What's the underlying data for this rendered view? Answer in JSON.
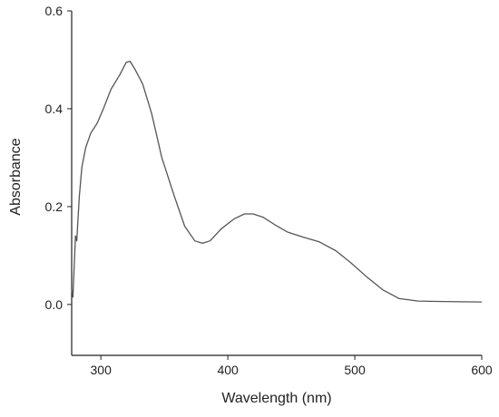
{
  "chart_data": {
    "type": "line",
    "xlabel": "Wavelength (nm)",
    "ylabel": "Absorbance",
    "x": [
      277,
      278,
      279,
      280,
      281,
      283,
      285,
      288,
      292,
      297,
      302,
      308,
      315,
      320,
      323,
      327,
      333,
      340,
      348,
      358,
      366,
      374,
      380,
      386,
      395,
      405,
      413,
      420,
      428,
      437,
      447,
      460,
      472,
      485,
      497,
      510,
      522,
      535,
      550,
      570,
      600
    ],
    "values": [
      0.03,
      0.015,
      0.08,
      0.14,
      0.13,
      0.22,
      0.28,
      0.32,
      0.35,
      0.37,
      0.4,
      0.44,
      0.47,
      0.495,
      0.497,
      0.48,
      0.45,
      0.39,
      0.3,
      0.22,
      0.16,
      0.13,
      0.125,
      0.13,
      0.155,
      0.175,
      0.185,
      0.185,
      0.178,
      0.163,
      0.148,
      0.137,
      0.128,
      0.11,
      0.085,
      0.055,
      0.03,
      0.012,
      0.007,
      0.006,
      0.005
    ],
    "color": "#555555",
    "xlim": [
      277,
      600
    ],
    "ylim": [
      -0.104,
      0.6
    ],
    "xticks": [
      300,
      400,
      500,
      600
    ],
    "yticks": [
      {
        "value": 0,
        "label": "0.0"
      },
      0.2,
      0.4,
      0.6
    ]
  }
}
